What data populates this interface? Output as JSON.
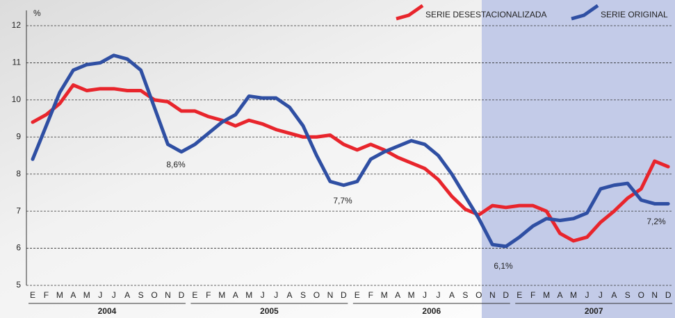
{
  "chart_data": {
    "type": "line",
    "y_label": "%",
    "categories": [
      "E",
      "F",
      "M",
      "A",
      "M",
      "J",
      "J",
      "A",
      "S",
      "O",
      "N",
      "D",
      "E",
      "F",
      "M",
      "A",
      "M",
      "J",
      "J",
      "A",
      "S",
      "O",
      "N",
      "D",
      "E",
      "F",
      "M",
      "A",
      "M",
      "J",
      "J",
      "A",
      "S",
      "O",
      "N",
      "D",
      "E",
      "F",
      "M",
      "A",
      "M",
      "J",
      "J",
      "A",
      "S",
      "O",
      "N",
      "D"
    ],
    "x_groups": [
      "2004",
      "2005",
      "2006",
      "2007"
    ],
    "ylim": [
      5,
      12
    ],
    "yticks": [
      5,
      6,
      7,
      8,
      9,
      10,
      11,
      12
    ],
    "grid": true,
    "legend": "top-right",
    "series": [
      {
        "name": "SERIE DESESTACIONALIZADA",
        "color": "#e8252c",
        "values": [
          9.4,
          9.6,
          9.9,
          10.4,
          10.25,
          10.3,
          10.3,
          10.25,
          10.25,
          10.0,
          9.95,
          9.7,
          9.7,
          9.55,
          9.45,
          9.3,
          9.45,
          9.35,
          9.2,
          9.1,
          9.0,
          9.0,
          9.05,
          8.8,
          8.65,
          8.8,
          8.65,
          8.45,
          8.3,
          8.15,
          7.85,
          7.4,
          7.05,
          6.9,
          7.15,
          7.1,
          7.15,
          7.15,
          7.0,
          6.4,
          6.2,
          6.3,
          6.7,
          7.0,
          7.35,
          7.6,
          8.35,
          8.2
        ]
      },
      {
        "name": "SERIE ORIGINAL",
        "color": "#2f4fa3",
        "values": [
          8.4,
          9.3,
          10.2,
          10.8,
          10.95,
          11.0,
          11.2,
          11.1,
          10.8,
          9.8,
          8.8,
          8.6,
          8.8,
          9.1,
          9.4,
          9.6,
          10.1,
          10.05,
          10.05,
          9.8,
          9.3,
          8.5,
          7.8,
          7.7,
          7.8,
          8.4,
          8.6,
          8.75,
          8.9,
          8.8,
          8.5,
          8.0,
          7.4,
          6.8,
          6.1,
          6.05,
          6.3,
          6.6,
          6.8,
          6.75,
          6.8,
          6.95,
          7.6,
          7.7,
          7.75,
          7.3,
          7.2,
          7.2
        ]
      }
    ],
    "annotations": [
      "8,6%",
      "7,7%",
      "6,1%",
      "7,2%"
    ]
  }
}
